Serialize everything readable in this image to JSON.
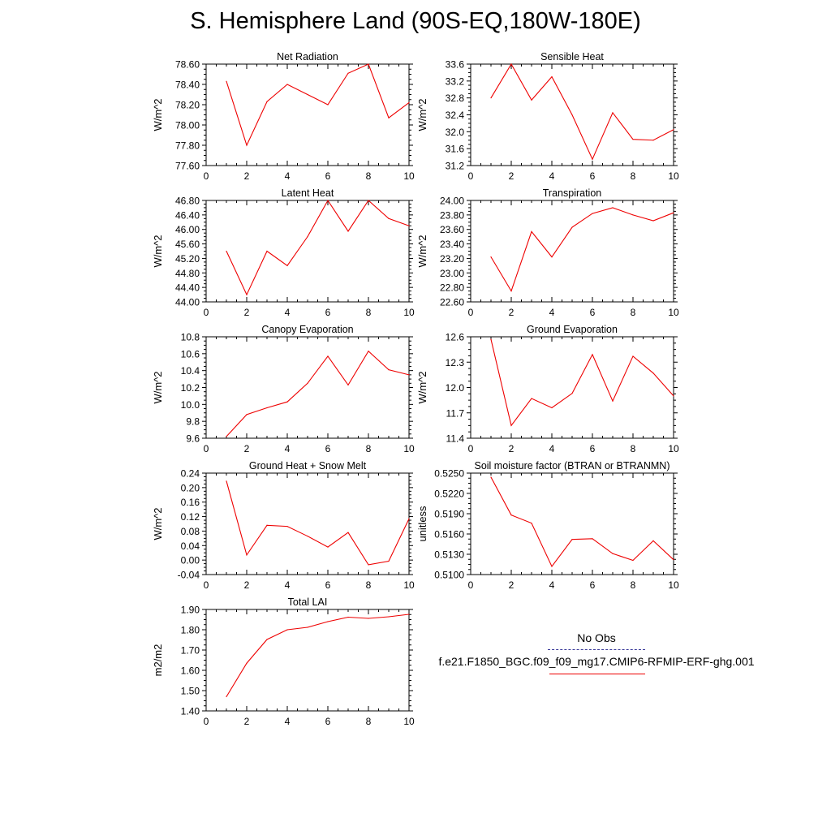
{
  "page_title": "S. Hemisphere Land (90S-EQ,180W-180E)",
  "legend": {
    "obs_label": "No Obs",
    "obs_color": "#3a3a9a",
    "case_label": "f.e21.F1850_BGC.f09_f09_mg17.CMIP6-RFMIP-ERF-ghg.001",
    "case_color": "#ee0000"
  },
  "chart_data": [
    {
      "type": "line",
      "title": "Net Radiation",
      "ylabel": "W/m^2",
      "xlim": [
        0,
        10
      ],
      "ylim": [
        77.6,
        78.6
      ],
      "xticks": [
        0,
        2,
        4,
        6,
        8,
        10
      ],
      "yticks": [
        77.6,
        77.8,
        78.0,
        78.2,
        78.4,
        78.6
      ],
      "ytick_labels": [
        "77.60",
        "77.80",
        "78.00",
        "78.20",
        "78.40",
        "78.60"
      ],
      "x": [
        1,
        2,
        3,
        4,
        5,
        6,
        7,
        8,
        9,
        10
      ],
      "values": [
        78.43,
        77.8,
        78.23,
        78.4,
        78.3,
        78.2,
        78.51,
        78.6,
        78.07,
        78.22
      ],
      "color": "#ee0000"
    },
    {
      "type": "line",
      "title": "Sensible Heat",
      "ylabel": "W/m^2",
      "xlim": [
        0,
        10
      ],
      "ylim": [
        31.2,
        33.6
      ],
      "xticks": [
        0,
        2,
        4,
        6,
        8,
        10
      ],
      "yticks": [
        31.2,
        31.6,
        32.0,
        32.4,
        32.8,
        33.2,
        33.6
      ],
      "ytick_labels": [
        "31.2",
        "31.6",
        "32.0",
        "32.4",
        "32.8",
        "33.2",
        "33.6"
      ],
      "x": [
        1,
        2,
        3,
        4,
        5,
        6,
        7,
        8,
        9,
        10
      ],
      "values": [
        32.8,
        33.6,
        32.75,
        33.3,
        32.4,
        31.35,
        32.45,
        31.82,
        31.8,
        32.05
      ],
      "color": "#ee0000"
    },
    {
      "type": "line",
      "title": "Latent Heat",
      "ylabel": "W/m^2",
      "xlim": [
        0,
        10
      ],
      "ylim": [
        44.0,
        46.8
      ],
      "xticks": [
        0,
        2,
        4,
        6,
        8,
        10
      ],
      "yticks": [
        44.0,
        44.4,
        44.8,
        45.2,
        45.6,
        46.0,
        46.4,
        46.8
      ],
      "ytick_labels": [
        "44.00",
        "44.40",
        "44.80",
        "45.20",
        "45.60",
        "46.00",
        "46.40",
        "46.80"
      ],
      "x": [
        1,
        2,
        3,
        4,
        5,
        6,
        7,
        8,
        9,
        10
      ],
      "values": [
        45.4,
        44.2,
        45.4,
        45.0,
        45.8,
        46.8,
        45.95,
        46.8,
        46.3,
        46.1
      ],
      "color": "#ee0000"
    },
    {
      "type": "line",
      "title": "Transpiration",
      "ylabel": "W/m^2",
      "xlim": [
        0,
        10
      ],
      "ylim": [
        22.6,
        24.0
      ],
      "xticks": [
        0,
        2,
        4,
        6,
        8,
        10
      ],
      "yticks": [
        22.6,
        22.8,
        23.0,
        23.2,
        23.4,
        23.6,
        23.8,
        24.0
      ],
      "ytick_labels": [
        "22.60",
        "22.80",
        "23.00",
        "23.20",
        "23.40",
        "23.60",
        "23.80",
        "24.00"
      ],
      "x": [
        1,
        2,
        3,
        4,
        5,
        6,
        7,
        8,
        9,
        10
      ],
      "values": [
        23.22,
        22.75,
        23.57,
        23.22,
        23.63,
        23.82,
        23.9,
        23.8,
        23.72,
        23.83
      ],
      "color": "#ee0000"
    },
    {
      "type": "line",
      "title": "Canopy Evaporation",
      "ylabel": "W/m^2",
      "xlim": [
        0,
        10
      ],
      "ylim": [
        9.6,
        10.8
      ],
      "xticks": [
        0,
        2,
        4,
        6,
        8,
        10
      ],
      "yticks": [
        9.6,
        9.8,
        10.0,
        10.2,
        10.4,
        10.6,
        10.8
      ],
      "ytick_labels": [
        "9.6",
        "9.8",
        "10.0",
        "10.2",
        "10.4",
        "10.6",
        "10.8"
      ],
      "x": [
        1,
        2,
        3,
        4,
        5,
        6,
        7,
        8,
        9,
        10
      ],
      "values": [
        9.62,
        9.88,
        9.96,
        10.03,
        10.25,
        10.57,
        10.23,
        10.63,
        10.41,
        10.35
      ],
      "color": "#ee0000"
    },
    {
      "type": "line",
      "title": "Ground Evaporation",
      "ylabel": "W/m^2",
      "xlim": [
        0,
        10
      ],
      "ylim": [
        11.4,
        12.6
      ],
      "xticks": [
        0,
        2,
        4,
        6,
        8,
        10
      ],
      "yticks": [
        11.4,
        11.7,
        12.0,
        12.3,
        12.6
      ],
      "ytick_labels": [
        "11.4",
        "11.7",
        "12.0",
        "12.3",
        "12.6"
      ],
      "x": [
        1,
        2,
        3,
        4,
        5,
        6,
        7,
        8,
        9,
        10
      ],
      "values": [
        12.57,
        11.55,
        11.87,
        11.76,
        11.93,
        12.39,
        11.84,
        12.37,
        12.17,
        11.9
      ],
      "color": "#ee0000"
    },
    {
      "type": "line",
      "title": "Ground Heat + Snow Melt",
      "ylabel": "W/m^2",
      "xlim": [
        0,
        10
      ],
      "ylim": [
        -0.04,
        0.24
      ],
      "xticks": [
        0,
        2,
        4,
        6,
        8,
        10
      ],
      "yticks": [
        -0.04,
        0.0,
        0.04,
        0.08,
        0.12,
        0.16,
        0.2,
        0.24
      ],
      "ytick_labels": [
        "-0.04",
        "0.00",
        "0.04",
        "0.08",
        "0.12",
        "0.16",
        "0.20",
        "0.24"
      ],
      "x": [
        1,
        2,
        3,
        4,
        5,
        6,
        7,
        8,
        9,
        10
      ],
      "values": [
        0.218,
        0.014,
        0.096,
        0.093,
        0.066,
        0.036,
        0.076,
        -0.013,
        -0.003,
        0.114
      ],
      "color": "#ee0000"
    },
    {
      "type": "line",
      "title": "Soil moisture factor (BTRAN or BTRANMN)",
      "ylabel": "unitless",
      "xlim": [
        0,
        10
      ],
      "ylim": [
        0.51,
        0.525
      ],
      "xticks": [
        0,
        2,
        4,
        6,
        8,
        10
      ],
      "yticks": [
        0.51,
        0.513,
        0.516,
        0.519,
        0.522,
        0.525
      ],
      "ytick_labels": [
        "0.5100",
        "0.5130",
        "0.5160",
        "0.5190",
        "0.5220",
        "0.5250"
      ],
      "x": [
        1,
        2,
        3,
        4,
        5,
        6,
        7,
        8,
        9,
        10
      ],
      "values": [
        0.5244,
        0.5188,
        0.5176,
        0.5112,
        0.5152,
        0.5153,
        0.5131,
        0.5121,
        0.515,
        0.5122
      ],
      "color": "#ee0000"
    },
    {
      "type": "line",
      "title": "Total LAI",
      "ylabel": "m2/m2",
      "xlim": [
        0,
        10
      ],
      "ylim": [
        1.4,
        1.9
      ],
      "xticks": [
        0,
        2,
        4,
        6,
        8,
        10
      ],
      "yticks": [
        1.4,
        1.5,
        1.6,
        1.7,
        1.8,
        1.9
      ],
      "ytick_labels": [
        "1.40",
        "1.50",
        "1.60",
        "1.70",
        "1.80",
        "1.90"
      ],
      "x": [
        1,
        2,
        3,
        4,
        5,
        6,
        7,
        8,
        9,
        10
      ],
      "values": [
        1.47,
        1.635,
        1.752,
        1.8,
        1.812,
        1.84,
        1.862,
        1.856,
        1.864,
        1.876
      ],
      "color": "#ee0000"
    }
  ]
}
